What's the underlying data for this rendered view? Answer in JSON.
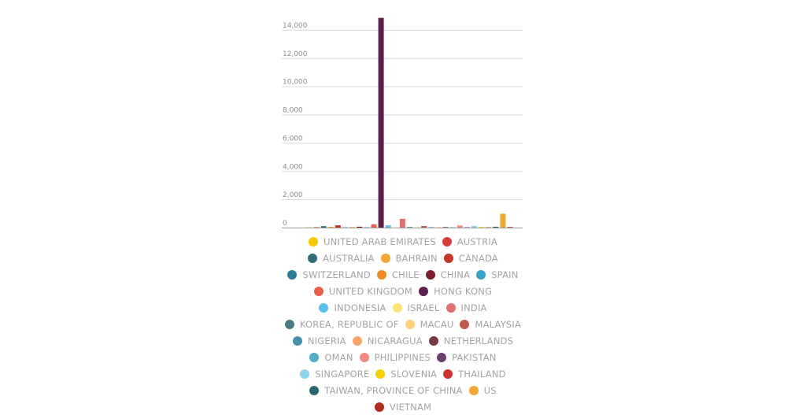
{
  "chart_data": {
    "type": "bar",
    "title": "",
    "xlabel": "",
    "ylabel": "",
    "ylim": [
      0,
      15000
    ],
    "yticks": [
      0,
      2000,
      4000,
      6000,
      8000,
      10000,
      12000,
      14000
    ],
    "ytick_labels": [
      "0",
      "2,000",
      "4,000",
      "6,000",
      "8,000",
      "10,000",
      "12,000",
      "14,000"
    ],
    "legend_position": "bottom",
    "categories": [
      "UNITED ARAB EMIRATES",
      "AUSTRIA",
      "AUSTRALIA",
      "BAHRAIN",
      "CANADA",
      "SWITZERLAND",
      "CHILE",
      "CHINA",
      "SPAIN",
      "UNITED KINGDOM",
      "HONG KONG",
      "INDONESIA",
      "ISRAEL",
      "INDIA",
      "KOREA, REPUBLIC OF",
      "MACAU",
      "MALAYSIA",
      "NIGERIA",
      "NICARAGUA",
      "NETHERLANDS",
      "OMAN",
      "PHILIPPINES",
      "PAKISTAN",
      "SINGAPORE",
      "SLOVENIA",
      "THAILAND",
      "TAIWAN, PROVINCE OF CHINA",
      "US",
      "VIETNAM"
    ],
    "values": [
      15,
      30,
      100,
      60,
      160,
      15,
      30,
      60,
      20,
      230,
      14850,
      160,
      15,
      620,
      40,
      15,
      110,
      30,
      20,
      40,
      20,
      150,
      20,
      120,
      40,
      20,
      60,
      980,
      40
    ],
    "colors": [
      "#f5c800",
      "#d63e3e",
      "#2f6b78",
      "#f0a830",
      "#c0392b",
      "#2d7d9a",
      "#f08a24",
      "#7a1f2b",
      "#3aa0c8",
      "#e8604c",
      "#5c1f4e",
      "#5bc0e8",
      "#fde37a",
      "#e07070",
      "#4a7a80",
      "#fdd17a",
      "#c0584e",
      "#4a8fa8",
      "#fca468",
      "#7a3a44",
      "#52afc8",
      "#f28a80",
      "#6e3e6e",
      "#8fd4ec",
      "#f5d000",
      "#cc3333",
      "#2a6670",
      "#f0a830",
      "#b22a20"
    ]
  }
}
